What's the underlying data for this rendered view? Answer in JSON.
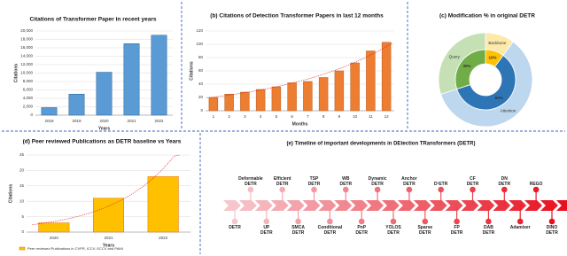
{
  "chart_data": [
    {
      "type": "bar",
      "title": "Citations of Transformer Paper in recent years",
      "categories": [
        "2018",
        "2019",
        "2020",
        "2021",
        "2022"
      ],
      "values": [
        1800,
        5000,
        10200,
        17000,
        19000
      ],
      "color": "#5b9bd5",
      "edgecolor": "#2e5f8f",
      "xlabel": "Years",
      "ylabel": "Citations",
      "ylim": [
        0,
        20000
      ],
      "yticks": [
        0,
        {
          "value": 2000,
          "label": "2,000"
        },
        {
          "value": 4000,
          "label": "4,000"
        },
        {
          "value": 6000,
          "label": "6,000"
        },
        {
          "value": 8000,
          "label": "8,000"
        },
        {
          "value": 10000,
          "label": "10,000"
        },
        {
          "value": 12000,
          "label": "12,000"
        },
        {
          "value": 14000,
          "label": "14,000"
        },
        {
          "value": 16000,
          "label": "16,000"
        },
        {
          "value": 18000,
          "label": "18,000"
        },
        {
          "value": 20000,
          "label": "20,000"
        }
      ],
      "grid": true,
      "trendline": false
    },
    {
      "type": "bar",
      "title": "(b) Citations of Detection Transformer Papers in last 12 months",
      "categories": [
        "1",
        "2",
        "3",
        "4",
        "5",
        "6",
        "7",
        "8",
        "9",
        "10",
        "11",
        "12"
      ],
      "values": [
        20,
        25,
        28,
        32,
        36,
        42,
        44,
        50,
        60,
        72,
        90,
        103
      ],
      "color": "#ed7d31",
      "edgecolor": "#b85a1c",
      "xlabel": "Months",
      "ylabel": "Citations",
      "ylim": [
        0,
        120
      ],
      "yticks": [
        0,
        20,
        40,
        60,
        80,
        100,
        120
      ],
      "grid": true,
      "trendline": true
    },
    {
      "type": "pie",
      "title": "(c) Modification % in original DETR",
      "categories": [
        "Backbone",
        "Attention",
        "Query"
      ],
      "values": [
        10,
        60,
        30
      ],
      "value_labels": [
        "10%",
        "60%",
        "30%"
      ],
      "colors": [
        "#ffc000",
        "#2e75b6",
        "#70ad47"
      ],
      "ring_colors": [
        "#fde9a9",
        "#bdd7ee",
        "#c5e0b4"
      ]
    },
    {
      "type": "bar",
      "title": "(d) Peer reviewed Publications as DETR baseline vs Years",
      "categories": [
        "2020",
        "2021",
        "2022"
      ],
      "series": [
        {
          "name": "Peer reviewed Publications in CVPR, ICCV, ECCV and PAMI",
          "color": "#ffc000",
          "values": [
            3,
            11,
            18
          ]
        }
      ],
      "edgecolor": "#e46c0a",
      "xlabel": "Years",
      "ylabel": "Citations",
      "ylim": [
        0,
        25
      ],
      "yticks": [
        0,
        5,
        10,
        15,
        20,
        25
      ],
      "grid": true,
      "trendline": true
    }
  ],
  "timeline": {
    "title": "(e) Timeline of important developments in DEtection TRansformers (DETR)",
    "below": [
      "DETR",
      "UP DETR",
      "SMCA DETR",
      "Conditional DETR",
      "PnP DETR",
      "YOLOS DETR",
      "Sparse DETR",
      "FP DETR",
      "DAB DETR",
      "Adamixer",
      "DINO DETR"
    ],
    "above": [
      "Deformable DETR",
      "Efficient DETR",
      "TSP DETR",
      "WB DETR",
      "Dynamic DETR",
      "Anchor DETR",
      "D²ETR",
      "CF DETR",
      "DN DETR",
      "REGO"
    ]
  }
}
